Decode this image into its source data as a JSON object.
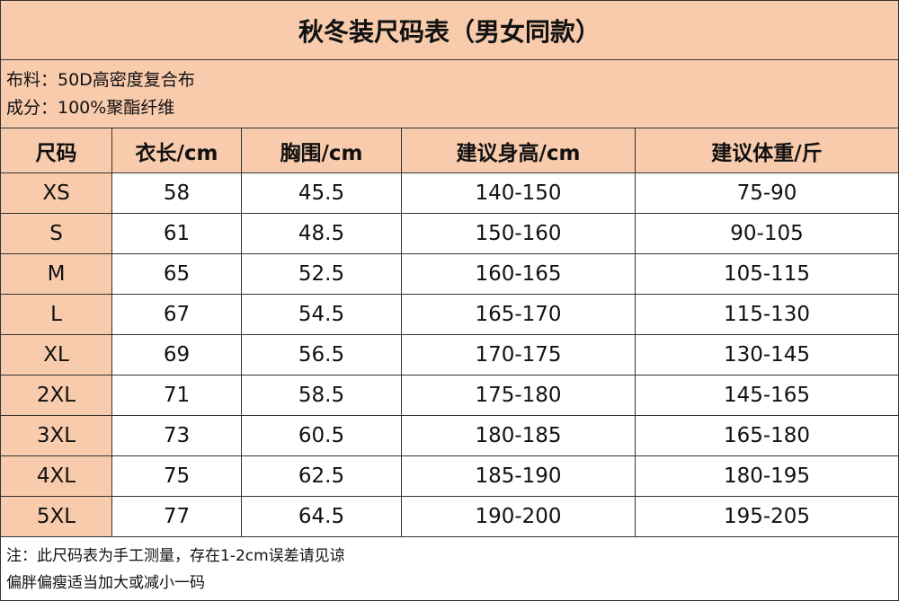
{
  "title": "秋冬装尺码表（男女同款）",
  "info": [
    "布料：50D高密度复合布",
    "成分：100%聚酯纤维"
  ],
  "table": {
    "header": [
      "尺码",
      "衣长/cm",
      "胸围/cm",
      "建议身高/cm",
      "建议体重/斤"
    ],
    "rows": [
      [
        "XS",
        "58",
        "45.5",
        "140-150",
        "75-90"
      ],
      [
        "S",
        "61",
        "48.5",
        "150-160",
        "90-105"
      ],
      [
        "M",
        "65",
        "52.5",
        "160-165",
        "105-115"
      ],
      [
        "L",
        "67",
        "54.5",
        "165-170",
        "115-130"
      ],
      [
        "XL",
        "69",
        "56.5",
        "170-175",
        "130-145"
      ],
      [
        "2XL",
        "71",
        "58.5",
        "175-180",
        "145-165"
      ],
      [
        "3XL",
        "73",
        "60.5",
        "180-185",
        "165-180"
      ],
      [
        "4XL",
        "75",
        "62.5",
        "185-190",
        "180-195"
      ],
      [
        "5XL",
        "77",
        "64.5",
        "190-200",
        "195-205"
      ]
    ]
  },
  "notes": [
    "注：此尺码表为手工测量，存在1-2cm误差请见谅",
    "偏胖偏瘦适当加大或减小一码"
  ]
}
